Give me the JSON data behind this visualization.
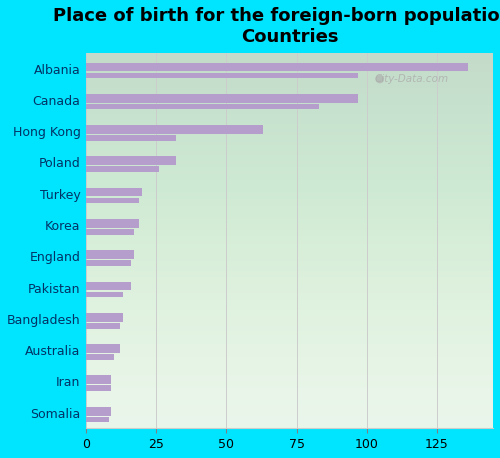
{
  "title": "Place of birth for the foreign-born population -\nCountries",
  "countries": [
    "Albania",
    "Canada",
    "Hong Kong",
    "Poland",
    "Turkey",
    "Korea",
    "England",
    "Pakistan",
    "Bangladesh",
    "Australia",
    "Iran",
    "Somalia"
  ],
  "values_main": [
    136,
    97,
    63,
    32,
    20,
    19,
    17,
    16,
    13,
    12,
    9,
    9
  ],
  "values_secondary": [
    97,
    83,
    32,
    26,
    19,
    17,
    16,
    13,
    12,
    10,
    9,
    8
  ],
  "bar_color": "#b59dcc",
  "bg_outer": "#00e5ff",
  "bg_inner_top": "#e8f5e8",
  "bg_inner_bottom": "#d0eed8",
  "xlim": [
    0,
    145
  ],
  "xticks": [
    0,
    25,
    50,
    75,
    100,
    125
  ],
  "title_fontsize": 13,
  "label_fontsize": 9,
  "tick_fontsize": 9,
  "watermark": "City-Data.com",
  "grid_color": "#cccccc"
}
